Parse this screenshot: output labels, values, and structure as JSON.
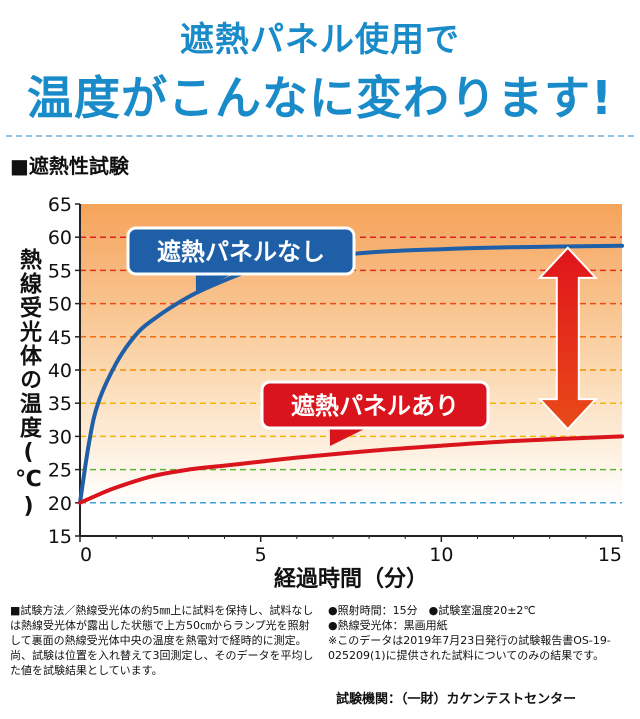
{
  "header": {
    "line1": "遮熱パネル使用で",
    "line2": "温度がこんなに変わります!"
  },
  "section_title": "■遮熱性試験",
  "colors": {
    "title_blue": "#1a8bc9",
    "series_blue": "#1e5fa8",
    "series_red": "#d9141c",
    "arrow_red": "#e0141b"
  },
  "chart_data": {
    "type": "line",
    "xlabel": "経過時間（分）",
    "ylabel": "熱線受光体の温度(℃)",
    "xlim": [
      0,
      15
    ],
    "ylim": [
      15,
      65
    ],
    "x_ticks": [
      "0",
      "5",
      "10",
      "15"
    ],
    "y_ticks": [
      "15",
      "20",
      "25",
      "30",
      "35",
      "40",
      "45",
      "50",
      "55",
      "60",
      "65"
    ],
    "series": [
      {
        "name": "遮熱パネルなし",
        "color": "#1e5fa8",
        "x": [
          0,
          0.25,
          0.5,
          1,
          1.5,
          2,
          3,
          4,
          5,
          6,
          8,
          10,
          12,
          15
        ],
        "y": [
          20,
          29,
          35,
          41,
          45,
          47.5,
          51,
          53.5,
          55.5,
          56.5,
          57.7,
          58.2,
          58.5,
          58.7
        ]
      },
      {
        "name": "遮熱パネルあり",
        "color": "#d9141c",
        "x": [
          0,
          0.5,
          1,
          2,
          3,
          4,
          5,
          6,
          8,
          10,
          12,
          15
        ],
        "y": [
          20,
          21.2,
          22.3,
          24,
          25,
          25.6,
          26.2,
          26.8,
          27.8,
          28.6,
          29.3,
          30
        ]
      }
    ],
    "grid": true,
    "grid_lines": [
      {
        "y": 20,
        "color": "#3aa1d8"
      },
      {
        "y": 25,
        "color": "#5cb531"
      },
      {
        "y": 30,
        "color": "#f0b800"
      },
      {
        "y": 35,
        "color": "#f0b800"
      },
      {
        "y": 40,
        "color": "#f29000"
      },
      {
        "y": 45,
        "color": "#ee6f12"
      },
      {
        "y": 50,
        "color": "#e84a18"
      },
      {
        "y": 55,
        "color": "#e4301b"
      },
      {
        "y": 60,
        "color": "#e02020"
      }
    ]
  },
  "notes": {
    "method": "■試験方法／熱線受光体の約5㎜上に試料を保持し、試料なしは熱線受光体が露出した状態で上方50㎝からランプ光を照射して裏面の熱線受光体中央の温度を熱電対で経時的に測定。尚、試験は位置を入れ替えて3回測定し、そのデータを平均した値を試験結果としています。",
    "time": "●照射時間：15分",
    "room_temp": "●試験室温度20±2℃",
    "receiver": "●熱線受光体：黒画用紙",
    "data_note": "※このデータは2019年7月23日発行の試験報告書OS-19-025209(1)に提供された試料についてのみの結果です。",
    "institution": "試験機関：（一財）カケンテストセンター"
  }
}
